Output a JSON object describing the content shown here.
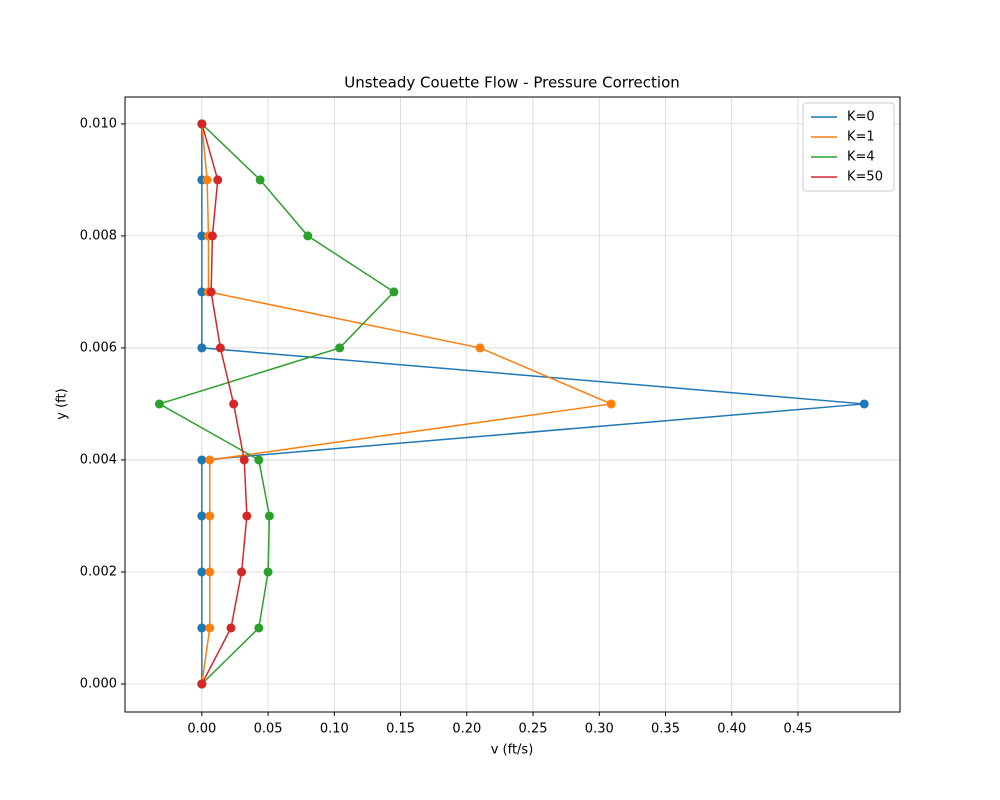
{
  "chart_data": {
    "type": "line",
    "title": "Unsteady Couette Flow - Pressure Correction",
    "xlabel": "v (ft/s)",
    "ylabel": "y (ft)",
    "y": [
      0,
      0.001,
      0.002,
      0.003,
      0.004,
      0.005,
      0.006,
      0.007,
      0.008,
      0.009,
      0.01
    ],
    "series": [
      {
        "name": "K=0",
        "color": "#1f77b4",
        "x": [
          0,
          0,
          0,
          0,
          0,
          0.5,
          0,
          0,
          0,
          0,
          0
        ]
      },
      {
        "name": "K=1",
        "color": "#ff7f0e",
        "x": [
          0,
          0.006,
          0.006,
          0.006,
          0.006,
          0.309,
          0.21,
          0.005,
          0.005,
          0.004,
          0
        ]
      },
      {
        "name": "K=4",
        "color": "#2ca02c",
        "x": [
          0,
          0.043,
          0.05,
          0.051,
          0.043,
          -0.032,
          0.104,
          0.145,
          0.08,
          0.044,
          0
        ]
      },
      {
        "name": "K=50",
        "color": "#d62728",
        "x": [
          0,
          0.022,
          0.03,
          0.034,
          0.032,
          0.024,
          0.014,
          0.007,
          0.008,
          0.012,
          0
        ]
      }
    ],
    "xlim": [
      -0.058,
      0.527
    ],
    "ylim": [
      -0.0005,
      0.01048
    ],
    "xticks": [
      {
        "value": 0,
        "label": "0.00"
      },
      {
        "value": 0.05,
        "label": "0.05"
      },
      {
        "value": 0.1,
        "label": "0.10"
      },
      {
        "value": 0.15,
        "label": "0.15"
      },
      {
        "value": 0.2,
        "label": "0.20"
      },
      {
        "value": 0.25,
        "label": "0.25"
      },
      {
        "value": 0.3,
        "label": "0.30"
      },
      {
        "value": 0.35,
        "label": "0.35"
      },
      {
        "value": 0.4,
        "label": "0.40"
      },
      {
        "value": 0.45,
        "label": "0.45"
      }
    ],
    "yticks": [
      {
        "value": 0,
        "label": "0.000"
      },
      {
        "value": 0.002,
        "label": "0.002"
      },
      {
        "value": 0.004,
        "label": "0.004"
      },
      {
        "value": 0.006,
        "label": "0.006"
      },
      {
        "value": 0.008,
        "label": "0.008"
      },
      {
        "value": 0.01,
        "label": "0.010"
      }
    ],
    "grid": true,
    "legend": "upper right",
    "markers": true
  }
}
